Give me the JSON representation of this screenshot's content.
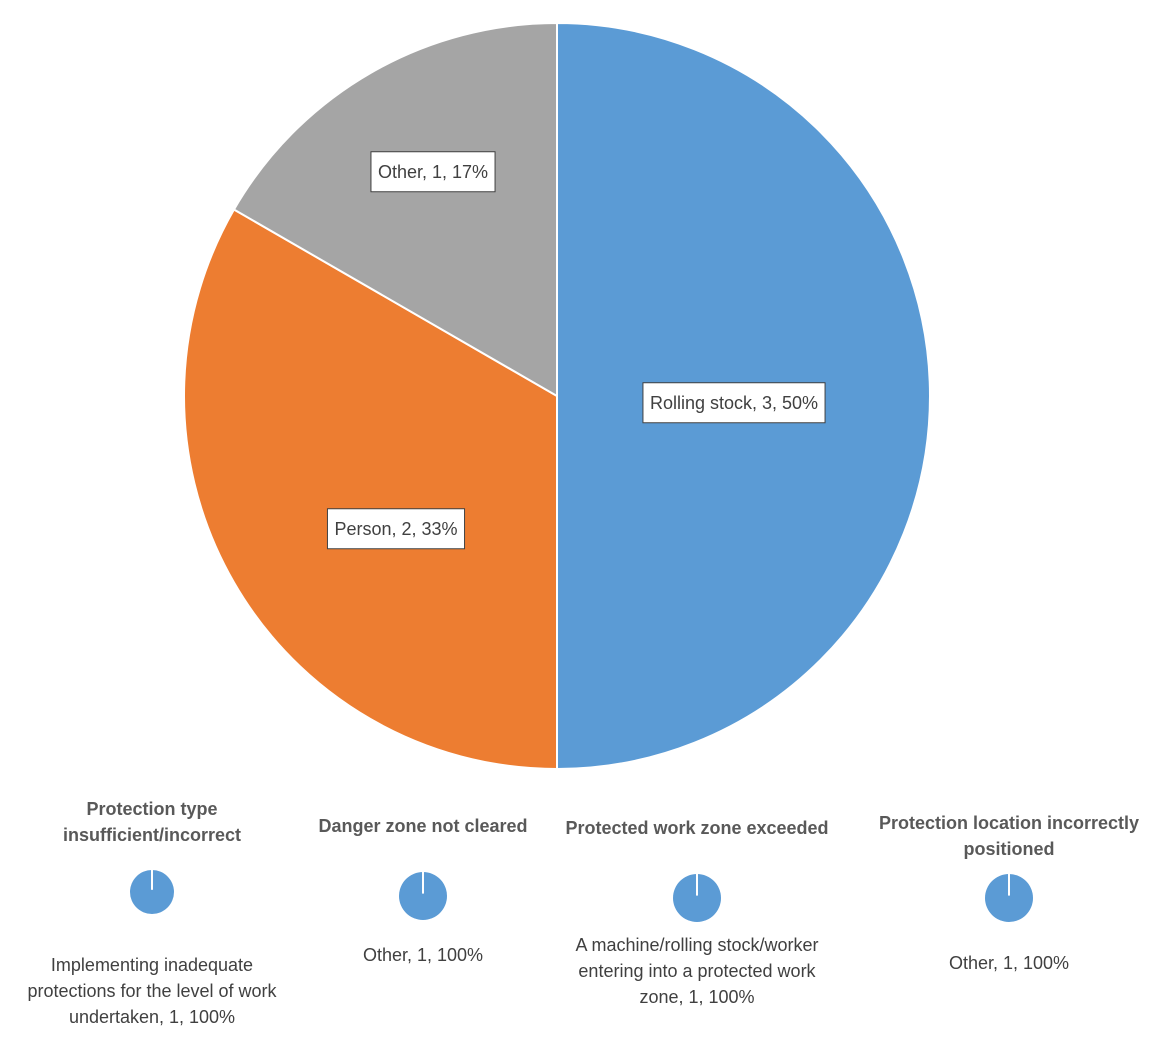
{
  "chart_data": [
    {
      "type": "pie",
      "title": "",
      "categories": [
        "Rolling stock",
        "Person",
        "Other"
      ],
      "values": [
        3,
        2,
        1
      ],
      "percentages": [
        50,
        33,
        17
      ],
      "colors": [
        "#5B9BD5",
        "#ED7D31",
        "#A5A5A5"
      ],
      "data_labels": [
        "Rolling stock, 3, 50%",
        "Person, 2, 33%",
        "Other, 1, 17%"
      ],
      "legend": "none"
    },
    {
      "type": "pie",
      "title": "Protection type insufficient/incorrect",
      "title_lines": [
        "Protection type",
        "insufficient/incorrect"
      ],
      "categories": [
        "Implementing inadequate protections for the level of work undertaken"
      ],
      "values": [
        1
      ],
      "percentages": [
        100
      ],
      "colors": [
        "#5B9BD5"
      ],
      "data_label_lines": [
        "Implementing inadequate",
        "protections for the level of work",
        "undertaken, 1, 100%"
      ]
    },
    {
      "type": "pie",
      "title": "Danger zone not cleared",
      "title_lines": [
        "Danger zone not cleared"
      ],
      "categories": [
        "Other"
      ],
      "values": [
        1
      ],
      "percentages": [
        100
      ],
      "colors": [
        "#5B9BD5"
      ],
      "data_label_lines": [
        "Other, 1, 100%"
      ]
    },
    {
      "type": "pie",
      "title": "Protected work zone exceeded",
      "title_lines": [
        "Protected work zone exceeded"
      ],
      "categories": [
        "A machine/rolling stock/worker entering into a protected work zone"
      ],
      "values": [
        1
      ],
      "percentages": [
        100
      ],
      "colors": [
        "#5B9BD5"
      ],
      "data_label_lines": [
        "A machine/rolling stock/worker",
        "entering into a protected work",
        "zone, 1, 100%"
      ]
    },
    {
      "type": "pie",
      "title": "Protection location incorrectly positioned",
      "title_lines": [
        "Protection location incorrectly",
        "positioned"
      ],
      "categories": [
        "Other"
      ],
      "values": [
        1
      ],
      "percentages": [
        100
      ],
      "colors": [
        "#5B9BD5"
      ],
      "data_label_lines": [
        "Other, 1, 100%"
      ]
    }
  ]
}
